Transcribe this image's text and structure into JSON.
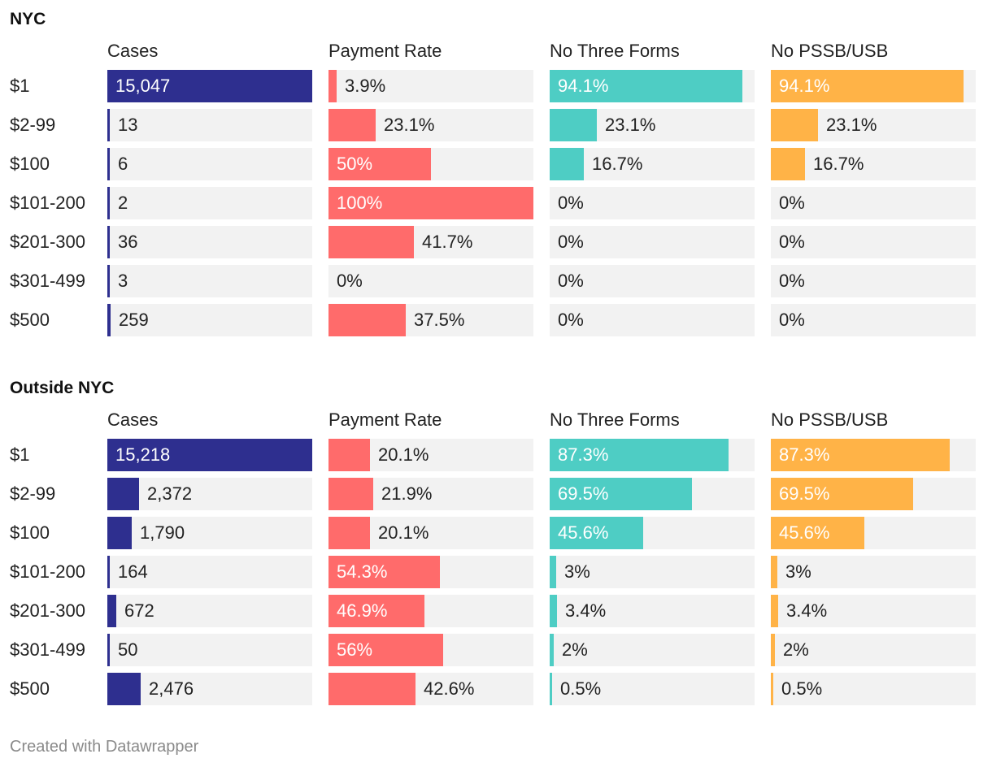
{
  "footer": "Created with Datawrapper",
  "colors": {
    "cases": "#2e2f8f",
    "payment_rate": "#ff6b6b",
    "no_three_forms": "#4ecdc4",
    "no_pssb_usb": "#ffb347",
    "track": "#f2f2f2"
  },
  "chart_data": [
    {
      "type": "table",
      "title": "NYC",
      "columns": [
        "Cases",
        "Payment Rate",
        "No Three Forms",
        "No PSSB/USB"
      ],
      "column_keys": [
        "cases",
        "payment_rate",
        "no_three_forms",
        "no_pssb_usb"
      ],
      "max": {
        "cases": 15047,
        "payment_rate": 100,
        "no_three_forms": 100,
        "no_pssb_usb": 100
      },
      "rows": [
        {
          "label": "$1",
          "cases": 15047,
          "cases_text": "15,047",
          "payment_rate": 3.9,
          "payment_rate_text": "3.9%",
          "no_three_forms": 94.1,
          "no_three_forms_text": "94.1%",
          "no_pssb_usb": 94.1,
          "no_pssb_usb_text": "94.1%"
        },
        {
          "label": "$2-99",
          "cases": 13,
          "cases_text": "13",
          "payment_rate": 23.1,
          "payment_rate_text": "23.1%",
          "no_three_forms": 23.1,
          "no_three_forms_text": "23.1%",
          "no_pssb_usb": 23.1,
          "no_pssb_usb_text": "23.1%"
        },
        {
          "label": "$100",
          "cases": 6,
          "cases_text": "6",
          "payment_rate": 50,
          "payment_rate_text": "50%",
          "no_three_forms": 16.7,
          "no_three_forms_text": "16.7%",
          "no_pssb_usb": 16.7,
          "no_pssb_usb_text": "16.7%"
        },
        {
          "label": "$101-200",
          "cases": 2,
          "cases_text": "2",
          "payment_rate": 100,
          "payment_rate_text": "100%",
          "no_three_forms": 0,
          "no_three_forms_text": "0%",
          "no_pssb_usb": 0,
          "no_pssb_usb_text": "0%"
        },
        {
          "label": "$201-300",
          "cases": 36,
          "cases_text": "36",
          "payment_rate": 41.7,
          "payment_rate_text": "41.7%",
          "no_three_forms": 0,
          "no_three_forms_text": "0%",
          "no_pssb_usb": 0,
          "no_pssb_usb_text": "0%"
        },
        {
          "label": "$301-499",
          "cases": 3,
          "cases_text": "3",
          "payment_rate": 0,
          "payment_rate_text": "0%",
          "no_three_forms": 0,
          "no_three_forms_text": "0%",
          "no_pssb_usb": 0,
          "no_pssb_usb_text": "0%"
        },
        {
          "label": "$500",
          "cases": 259,
          "cases_text": "259",
          "payment_rate": 37.5,
          "payment_rate_text": "37.5%",
          "no_three_forms": 0,
          "no_three_forms_text": "0%",
          "no_pssb_usb": 0,
          "no_pssb_usb_text": "0%"
        }
      ]
    },
    {
      "type": "table",
      "title": "Outside NYC",
      "columns": [
        "Cases",
        "Payment Rate",
        "No Three Forms",
        "No PSSB/USB"
      ],
      "column_keys": [
        "cases",
        "payment_rate",
        "no_three_forms",
        "no_pssb_usb"
      ],
      "max": {
        "cases": 15218,
        "payment_rate": 100,
        "no_three_forms": 100,
        "no_pssb_usb": 100
      },
      "rows": [
        {
          "label": "$1",
          "cases": 15218,
          "cases_text": "15,218",
          "payment_rate": 20.1,
          "payment_rate_text": "20.1%",
          "no_three_forms": 87.3,
          "no_three_forms_text": "87.3%",
          "no_pssb_usb": 87.3,
          "no_pssb_usb_text": "87.3%"
        },
        {
          "label": "$2-99",
          "cases": 2372,
          "cases_text": "2,372",
          "payment_rate": 21.9,
          "payment_rate_text": "21.9%",
          "no_three_forms": 69.5,
          "no_three_forms_text": "69.5%",
          "no_pssb_usb": 69.5,
          "no_pssb_usb_text": "69.5%"
        },
        {
          "label": "$100",
          "cases": 1790,
          "cases_text": "1,790",
          "payment_rate": 20.1,
          "payment_rate_text": "20.1%",
          "no_three_forms": 45.6,
          "no_three_forms_text": "45.6%",
          "no_pssb_usb": 45.6,
          "no_pssb_usb_text": "45.6%"
        },
        {
          "label": "$101-200",
          "cases": 164,
          "cases_text": "164",
          "payment_rate": 54.3,
          "payment_rate_text": "54.3%",
          "no_three_forms": 3,
          "no_three_forms_text": "3%",
          "no_pssb_usb": 3,
          "no_pssb_usb_text": "3%"
        },
        {
          "label": "$201-300",
          "cases": 672,
          "cases_text": "672",
          "payment_rate": 46.9,
          "payment_rate_text": "46.9%",
          "no_three_forms": 3.4,
          "no_three_forms_text": "3.4%",
          "no_pssb_usb": 3.4,
          "no_pssb_usb_text": "3.4%"
        },
        {
          "label": "$301-499",
          "cases": 50,
          "cases_text": "50",
          "payment_rate": 56,
          "payment_rate_text": "56%",
          "no_three_forms": 2,
          "no_three_forms_text": "2%",
          "no_pssb_usb": 2,
          "no_pssb_usb_text": "2%"
        },
        {
          "label": "$500",
          "cases": 2476,
          "cases_text": "2,476",
          "payment_rate": 42.6,
          "payment_rate_text": "42.6%",
          "no_three_forms": 0.5,
          "no_three_forms_text": "0.5%",
          "no_pssb_usb": 0.5,
          "no_pssb_usb_text": "0.5%"
        }
      ]
    }
  ]
}
